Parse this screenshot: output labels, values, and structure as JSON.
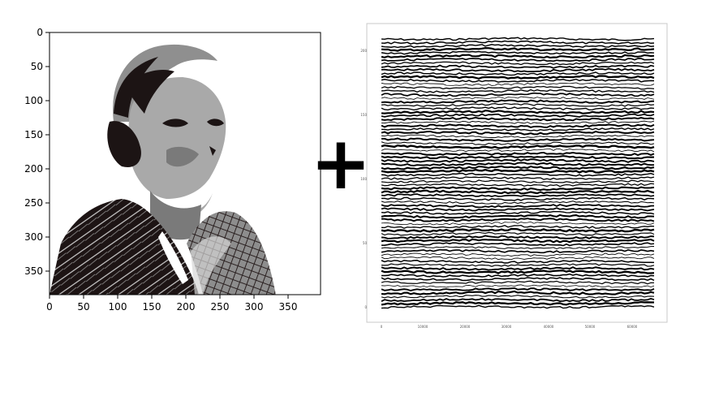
{
  "left_plot": {
    "y_ticks": [
      "0",
      "50",
      "100",
      "150",
      "200",
      "250",
      "300",
      "350"
    ],
    "x_ticks": [
      "0",
      "50",
      "100",
      "150",
      "200",
      "250",
      "300",
      "350"
    ]
  },
  "plus_sign": "+",
  "right_plot": {
    "y_ticks": [
      "200",
      "150",
      "100",
      "50",
      "0"
    ],
    "x_ticks": [
      "0",
      "10000",
      "20000",
      "30000",
      "40000",
      "50000",
      "60000"
    ]
  }
}
